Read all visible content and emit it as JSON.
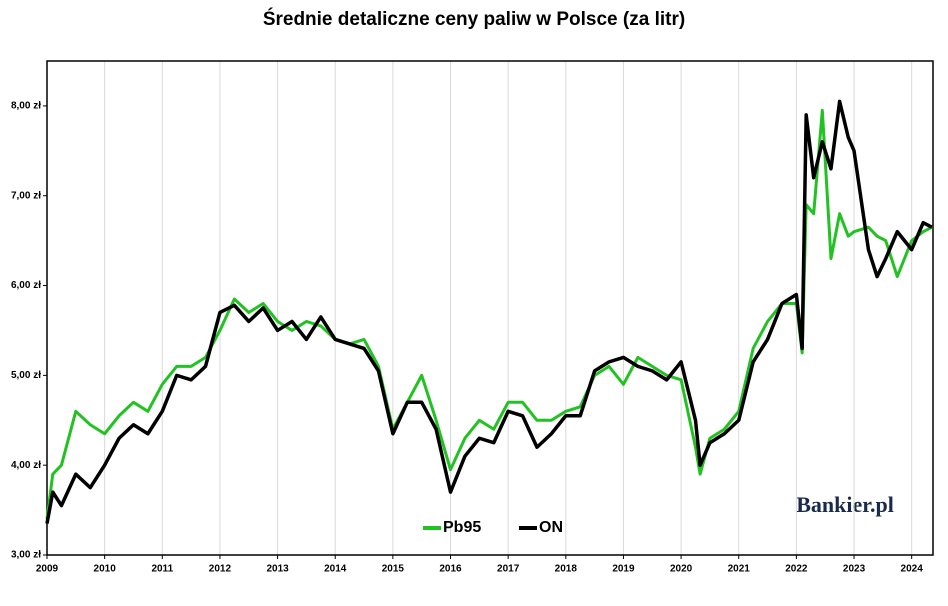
{
  "chart_data": {
    "type": "line",
    "title": "Średnie detaliczne ceny paliw w Polsce (za litr)",
    "watermark": "Bankier.pl",
    "x": [
      2009.0,
      2009.1,
      2009.25,
      2009.5,
      2009.75,
      2010.0,
      2010.25,
      2010.5,
      2010.75,
      2011.0,
      2011.25,
      2011.5,
      2011.75,
      2012.0,
      2012.25,
      2012.5,
      2012.75,
      2013.0,
      2013.25,
      2013.5,
      2013.75,
      2014.0,
      2014.25,
      2014.5,
      2014.75,
      2015.0,
      2015.25,
      2015.5,
      2015.75,
      2016.0,
      2016.25,
      2016.5,
      2016.75,
      2017.0,
      2017.25,
      2017.5,
      2017.75,
      2018.0,
      2018.25,
      2018.5,
      2018.75,
      2019.0,
      2019.25,
      2019.5,
      2019.75,
      2020.0,
      2020.25,
      2020.33,
      2020.5,
      2020.75,
      2021.0,
      2021.25,
      2021.5,
      2021.75,
      2022.0,
      2022.1,
      2022.17,
      2022.3,
      2022.45,
      2022.6,
      2022.75,
      2022.9,
      2023.0,
      2023.25,
      2023.4,
      2023.55,
      2023.75,
      2024.0,
      2024.2,
      2024.35
    ],
    "series": [
      {
        "name": "Pb95",
        "color": "#22c222",
        "values": [
          3.4,
          3.9,
          4.0,
          4.6,
          4.45,
          4.35,
          4.55,
          4.7,
          4.6,
          4.9,
          5.1,
          5.1,
          5.2,
          5.5,
          5.85,
          5.7,
          5.8,
          5.6,
          5.5,
          5.6,
          5.55,
          5.4,
          5.35,
          5.4,
          5.1,
          4.4,
          4.7,
          5.0,
          4.5,
          3.95,
          4.3,
          4.5,
          4.4,
          4.7,
          4.7,
          4.5,
          4.5,
          4.6,
          4.65,
          5.0,
          5.1,
          4.9,
          5.2,
          5.1,
          5.0,
          4.95,
          4.2,
          3.9,
          4.3,
          4.4,
          4.6,
          5.3,
          5.6,
          5.8,
          5.8,
          5.25,
          6.9,
          6.8,
          7.95,
          6.3,
          6.8,
          6.55,
          6.6,
          6.65,
          6.55,
          6.5,
          6.1,
          6.5,
          6.6,
          6.65
        ]
      },
      {
        "name": "ON",
        "color": "#000000",
        "values": [
          3.35,
          3.7,
          3.55,
          3.9,
          3.75,
          4.0,
          4.3,
          4.45,
          4.35,
          4.6,
          5.0,
          4.95,
          5.1,
          5.7,
          5.78,
          5.6,
          5.75,
          5.5,
          5.6,
          5.4,
          5.65,
          5.4,
          5.35,
          5.3,
          5.05,
          4.35,
          4.7,
          4.7,
          4.4,
          3.7,
          4.1,
          4.3,
          4.25,
          4.6,
          4.55,
          4.2,
          4.35,
          4.55,
          4.55,
          5.05,
          5.15,
          5.2,
          5.1,
          5.05,
          4.95,
          5.15,
          4.5,
          4.0,
          4.25,
          4.35,
          4.5,
          5.15,
          5.4,
          5.8,
          5.9,
          5.3,
          7.9,
          7.2,
          7.6,
          7.3,
          8.05,
          7.65,
          7.5,
          6.4,
          6.1,
          6.3,
          6.6,
          6.4,
          6.7,
          6.65
        ]
      }
    ],
    "xlim": [
      2009,
      2024.37
    ],
    "xticks": [
      2009,
      2010,
      2011,
      2012,
      2013,
      2014,
      2015,
      2016,
      2017,
      2018,
      2019,
      2020,
      2021,
      2022,
      2023,
      2024
    ],
    "ylim": [
      3,
      8.5
    ],
    "yticks": [
      {
        "value": 3,
        "label": "3,00 zł"
      },
      {
        "value": 4,
        "label": "4,00 zł"
      },
      {
        "value": 5,
        "label": "5,00 zł"
      },
      {
        "value": 6,
        "label": "6,00 zł"
      },
      {
        "value": 7,
        "label": "7,00 zł"
      },
      {
        "value": 8,
        "label": "8,00 zł"
      }
    ],
    "grid": true,
    "legend": "bottom"
  }
}
